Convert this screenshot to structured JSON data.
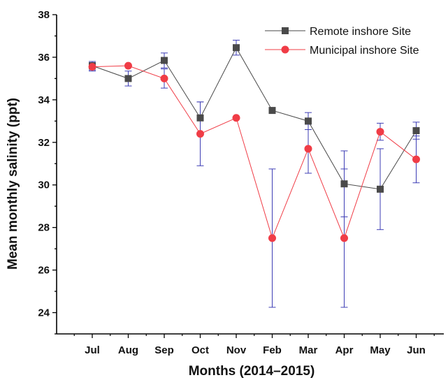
{
  "chart_data": {
    "type": "line",
    "xlabel": "Months (2014–2015)",
    "ylabel": "Mean monthly salinity (ppt)",
    "categories": [
      "Jul",
      "Aug",
      "Sep",
      "Oct",
      "Nov",
      "Feb",
      "Mar",
      "Apr",
      "May",
      "Jun"
    ],
    "ylim": [
      23,
      38
    ],
    "yticks": [
      24,
      26,
      28,
      30,
      32,
      34,
      36,
      38
    ],
    "legend_position": "top-right",
    "grid": false,
    "series": [
      {
        "name": "Remote inshore Site",
        "color": "#4a4a4a",
        "marker": "square",
        "values": [
          35.6,
          35.0,
          35.85,
          33.15,
          36.45,
          33.5,
          33.0,
          30.05,
          29.8,
          32.55
        ],
        "error": [
          0.2,
          0.35,
          0.35,
          0.75,
          0.35,
          0.05,
          0.4,
          1.55,
          1.9,
          0.4
        ]
      },
      {
        "name": "Municipal inshore Site",
        "color": "#f03c46",
        "marker": "circle",
        "values": [
          35.55,
          35.6,
          35.0,
          32.4,
          33.15,
          27.5,
          31.7,
          27.5,
          32.5,
          31.2
        ],
        "error": [
          0.2,
          0.05,
          0.45,
          1.5,
          0.05,
          3.25,
          1.15,
          3.25,
          0.4,
          1.1
        ]
      }
    ]
  }
}
